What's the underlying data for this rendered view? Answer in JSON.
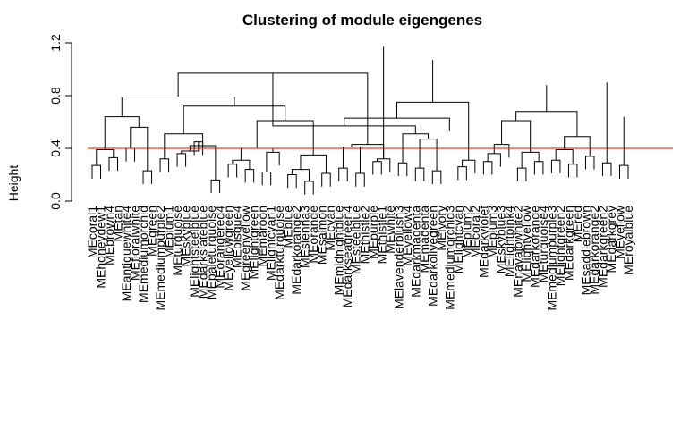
{
  "chart_data": {
    "type": "dendrogram",
    "title": "Clustering of module eigengenes",
    "xlabel": "",
    "ylabel": "Height",
    "ylim": [
      0,
      1.2
    ],
    "y_ticks": [
      "0.0",
      "0.4",
      "0.8",
      "1.2"
    ],
    "reference_line": {
      "value": 0.4,
      "color": "#ff0000"
    },
    "leaves": [
      "MEcoral1",
      "MEhoneydew1",
      "MEbrown4",
      "MEtan",
      "MEantiquewhite4",
      "MEfloralwhite",
      "MEmediumorchid",
      "MEgreen",
      "MEmediumpurple2",
      "MEplum1",
      "MEturquoise",
      "MEskyblue",
      "MElightsteelblue",
      "MEdarkslateblue",
      "MEpaleturquoise",
      "MEorangered4",
      "MEyellowgreen",
      "MEbisque4",
      "MEgreenyellow",
      "MElightgreen",
      "MEmaroon",
      "MElightcyan1",
      "MEdarkturquoise",
      "MEblue",
      "MEdarkorange2",
      "MEsienna3",
      "MEorange",
      "MEsalmon",
      "MEcyan",
      "MEmidnightblue",
      "MEdarkseagreen4",
      "MEsteelblue",
      "MEthistle2",
      "MEpurple",
      "MEthistle1",
      "MEwhite",
      "MElavenderblush3",
      "MEyellow4",
      "MEdarkmagenta",
      "MEmagenta",
      "MEdarkolivegreen",
      "MEivory",
      "MEmediumorchid3",
      "MElightcyan",
      "MEplum2",
      "MEcoral2",
      "MEdarkviolet",
      "MEplum3",
      "MEskyblue3",
      "MElightpink4",
      "MEnavajowhite2",
      "MElightyellow",
      "MEdarkorange",
      "MEturquoise4",
      "MEmediumpurple3",
      "MElightgreen2",
      "MEdarkgreen",
      "MEred",
      "MEsaddlebrown",
      "MEdarkorange2b",
      "MEdarkgreen2",
      "MEdarkgrey",
      "MEyellow",
      "MEroyalblue"
    ],
    "printed_labels": [
      "MEcoral1",
      "MEhoneydew1",
      "MEbrown4",
      "MEtan",
      "MEantiquewhite4",
      "MEfloralwhite",
      "MEmediumorchid",
      "MEgreen",
      "MEmediumpurple2",
      "MEplum1",
      "MEturquoise",
      "MEskyblue",
      "MElightsteelblue",
      "MEdarkslateblue",
      "MEpaleturquoise",
      "MEorangered4",
      "MEyellowgreen",
      "MEbisque4",
      "MEgreenyellow",
      "MElightgreen",
      "MEmaroon",
      "MElightcyan1",
      "MEdarkturquoise",
      "MEblue",
      "MEdarkorange2",
      "MEsienna3",
      "MEorange",
      "MEsalmon",
      "MEcyan",
      "MEmidnightblue",
      "MEdarkseagreen4",
      "MEsteelblue",
      "MEthistle2",
      "MEpurple",
      "MEthistle1",
      "MEwhite",
      "MElavenderblush3",
      "MEyellow4",
      "MEdarkmagenta",
      "MEmagenta",
      "MEdarkolivegreen",
      "MEivory",
      "MEmediumorchid3",
      "MElightcyan",
      "MEplum2",
      "MEcoral2",
      "MEdarkviolet",
      "MEplum3",
      "MEskyblue3",
      "MElightpink4",
      "MEnavajowhite2",
      "MElightyellow",
      "MEdarkorange",
      "MEturquoise4",
      "MEmediumpurple3",
      "MElightgreen2",
      "MEdarkgreen",
      "MEred",
      "MEsaddlebrown",
      "MEdarkorange2",
      "MEdarkgreen2",
      "MEdarkgrey",
      "MEyellow",
      "MEroyalblue"
    ],
    "merges": [
      [
        0,
        1,
        0.27
      ],
      [
        2,
        3,
        0.33
      ],
      [
        64,
        65,
        0.39
      ],
      [
        4,
        5,
        0.4
      ],
      [
        6,
        7,
        0.23
      ],
      [
        67,
        68,
        0.56
      ],
      [
        66,
        69,
        0.64
      ],
      [
        8,
        9,
        0.32
      ],
      [
        10,
        11,
        0.36
      ],
      [
        12,
        13,
        0.45
      ],
      [
        72,
        73,
        0.38
      ],
      [
        14,
        15,
        0.16
      ],
      [
        74,
        75,
        0.42
      ],
      [
        71,
        76,
        0.51
      ],
      [
        16,
        17,
        0.28
      ],
      [
        18,
        19,
        0.24
      ],
      [
        78,
        79,
        0.31
      ],
      [
        20,
        21,
        0.22
      ],
      [
        81,
        22,
        0.37
      ],
      [
        80,
        82,
        0.4
      ],
      [
        23,
        24,
        0.2
      ],
      [
        25,
        26,
        0.15
      ],
      [
        84,
        85,
        0.24
      ],
      [
        27,
        28,
        0.21
      ],
      [
        86,
        87,
        0.35
      ],
      [
        83,
        88,
        0.61
      ],
      [
        77,
        89,
        0.72
      ],
      [
        70,
        90,
        0.79
      ],
      [
        29,
        30,
        0.25
      ],
      [
        31,
        32,
        0.21
      ],
      [
        92,
        93,
        0.41
      ],
      [
        33,
        34,
        0.3
      ],
      [
        35,
        95,
        0.32
      ],
      [
        94,
        96,
        0.43
      ],
      [
        91,
        97,
        0.97
      ],
      [
        36,
        37,
        0.29
      ],
      [
        38,
        39,
        0.25
      ],
      [
        40,
        41,
        0.23
      ],
      [
        100,
        101,
        0.47
      ],
      [
        99,
        102,
        0.51
      ],
      [
        98,
        103,
        0.57
      ],
      [
        42,
        104,
        0.63
      ],
      [
        43,
        44,
        0.26
      ],
      [
        45,
        106,
        0.31
      ],
      [
        105,
        107,
        0.75
      ],
      [
        46,
        47,
        0.3
      ],
      [
        48,
        109,
        0.36
      ],
      [
        49,
        110,
        0.43
      ],
      [
        50,
        51,
        0.25
      ],
      [
        52,
        53,
        0.3
      ],
      [
        112,
        113,
        0.37
      ],
      [
        111,
        114,
        0.61
      ],
      [
        54,
        55,
        0.31
      ],
      [
        56,
        57,
        0.28
      ],
      [
        116,
        117,
        0.39
      ],
      [
        58,
        59,
        0.34
      ],
      [
        118,
        119,
        0.49
      ],
      [
        115,
        120,
        0.68
      ],
      [
        121,
        122,
        0.88
      ],
      [
        60,
        61,
        0.29
      ],
      [
        62,
        63,
        0.27
      ],
      [
        124,
        125,
        0.64
      ],
      [
        123,
        126,
        0.9
      ],
      [
        108,
        127,
        1.07
      ],
      [
        96,
        128,
        1.17
      ]
    ]
  }
}
